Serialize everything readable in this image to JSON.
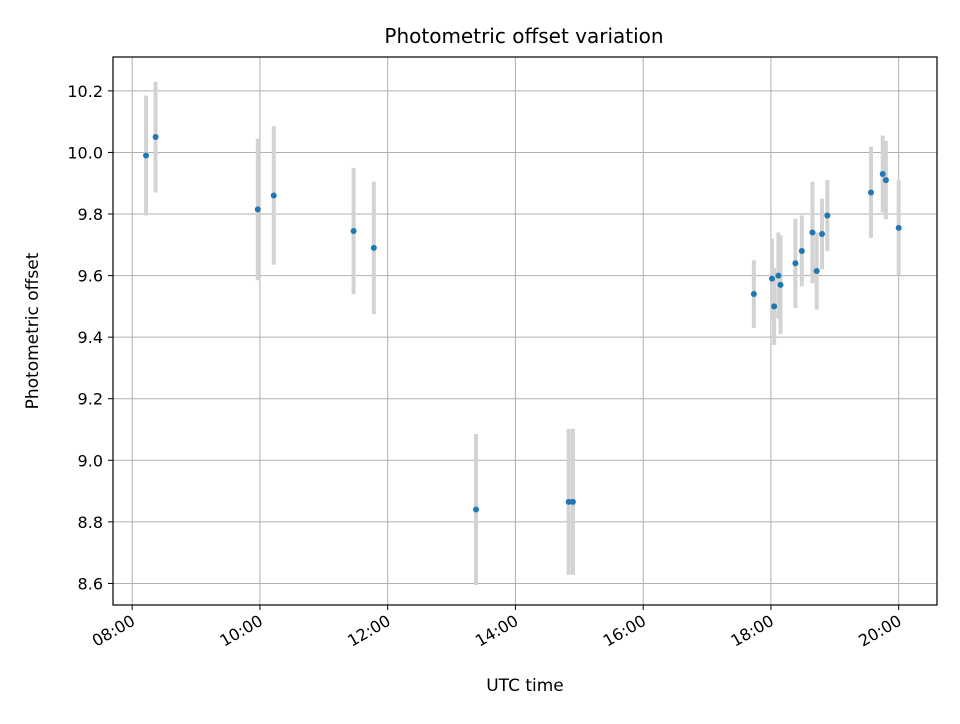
{
  "chart_data": {
    "type": "scatter",
    "title": "Photometric offset variation",
    "xlabel": "UTC time",
    "ylabel": "Photometric offset",
    "x_ticks": [
      "08:00",
      "10:00",
      "12:00",
      "14:00",
      "16:00",
      "18:00",
      "20:00"
    ],
    "y_ticks": [
      "8.6",
      "8.8",
      "9.0",
      "9.2",
      "9.4",
      "9.6",
      "9.8",
      "10.0",
      "10.2"
    ],
    "xlim": [
      "07:42",
      "20:36"
    ],
    "ylim": [
      8.53,
      10.31
    ],
    "grid": true,
    "marker_color": "#1f77b4",
    "errorbar_color": "#d3d3d3",
    "points": [
      {
        "x": "08:13",
        "y": 9.99,
        "err": 0.195
      },
      {
        "x": "08:22",
        "y": 10.05,
        "err": 0.18
      },
      {
        "x": "09:58",
        "y": 9.815,
        "err": 0.23
      },
      {
        "x": "10:13",
        "y": 9.86,
        "err": 0.225
      },
      {
        "x": "11:28",
        "y": 9.745,
        "err": 0.205
      },
      {
        "x": "11:47",
        "y": 9.69,
        "err": 0.215
      },
      {
        "x": "13:23",
        "y": 8.84,
        "err": 0.245
      },
      {
        "x": "14:50",
        "y": 8.865,
        "err": 0.237
      },
      {
        "x": "14:54",
        "y": 8.865,
        "err": 0.237
      },
      {
        "x": "17:44",
        "y": 9.54,
        "err": 0.11
      },
      {
        "x": "18:01",
        "y": 9.59,
        "err": 0.13
      },
      {
        "x": "18:03",
        "y": 9.5,
        "err": 0.125
      },
      {
        "x": "18:07",
        "y": 9.6,
        "err": 0.14
      },
      {
        "x": "18:09",
        "y": 9.57,
        "err": 0.16
      },
      {
        "x": "18:23",
        "y": 9.64,
        "err": 0.145
      },
      {
        "x": "18:29",
        "y": 9.68,
        "err": 0.115
      },
      {
        "x": "18:39",
        "y": 9.74,
        "err": 0.165
      },
      {
        "x": "18:43",
        "y": 9.615,
        "err": 0.125
      },
      {
        "x": "18:48",
        "y": 9.735,
        "err": 0.115
      },
      {
        "x": "18:53",
        "y": 9.795,
        "err": 0.115
      },
      {
        "x": "19:34",
        "y": 9.87,
        "err": 0.148
      },
      {
        "x": "19:45",
        "y": 9.93,
        "err": 0.125
      },
      {
        "x": "19:48",
        "y": 9.91,
        "err": 0.127
      },
      {
        "x": "20:00",
        "y": 9.755,
        "err": 0.155
      }
    ]
  }
}
